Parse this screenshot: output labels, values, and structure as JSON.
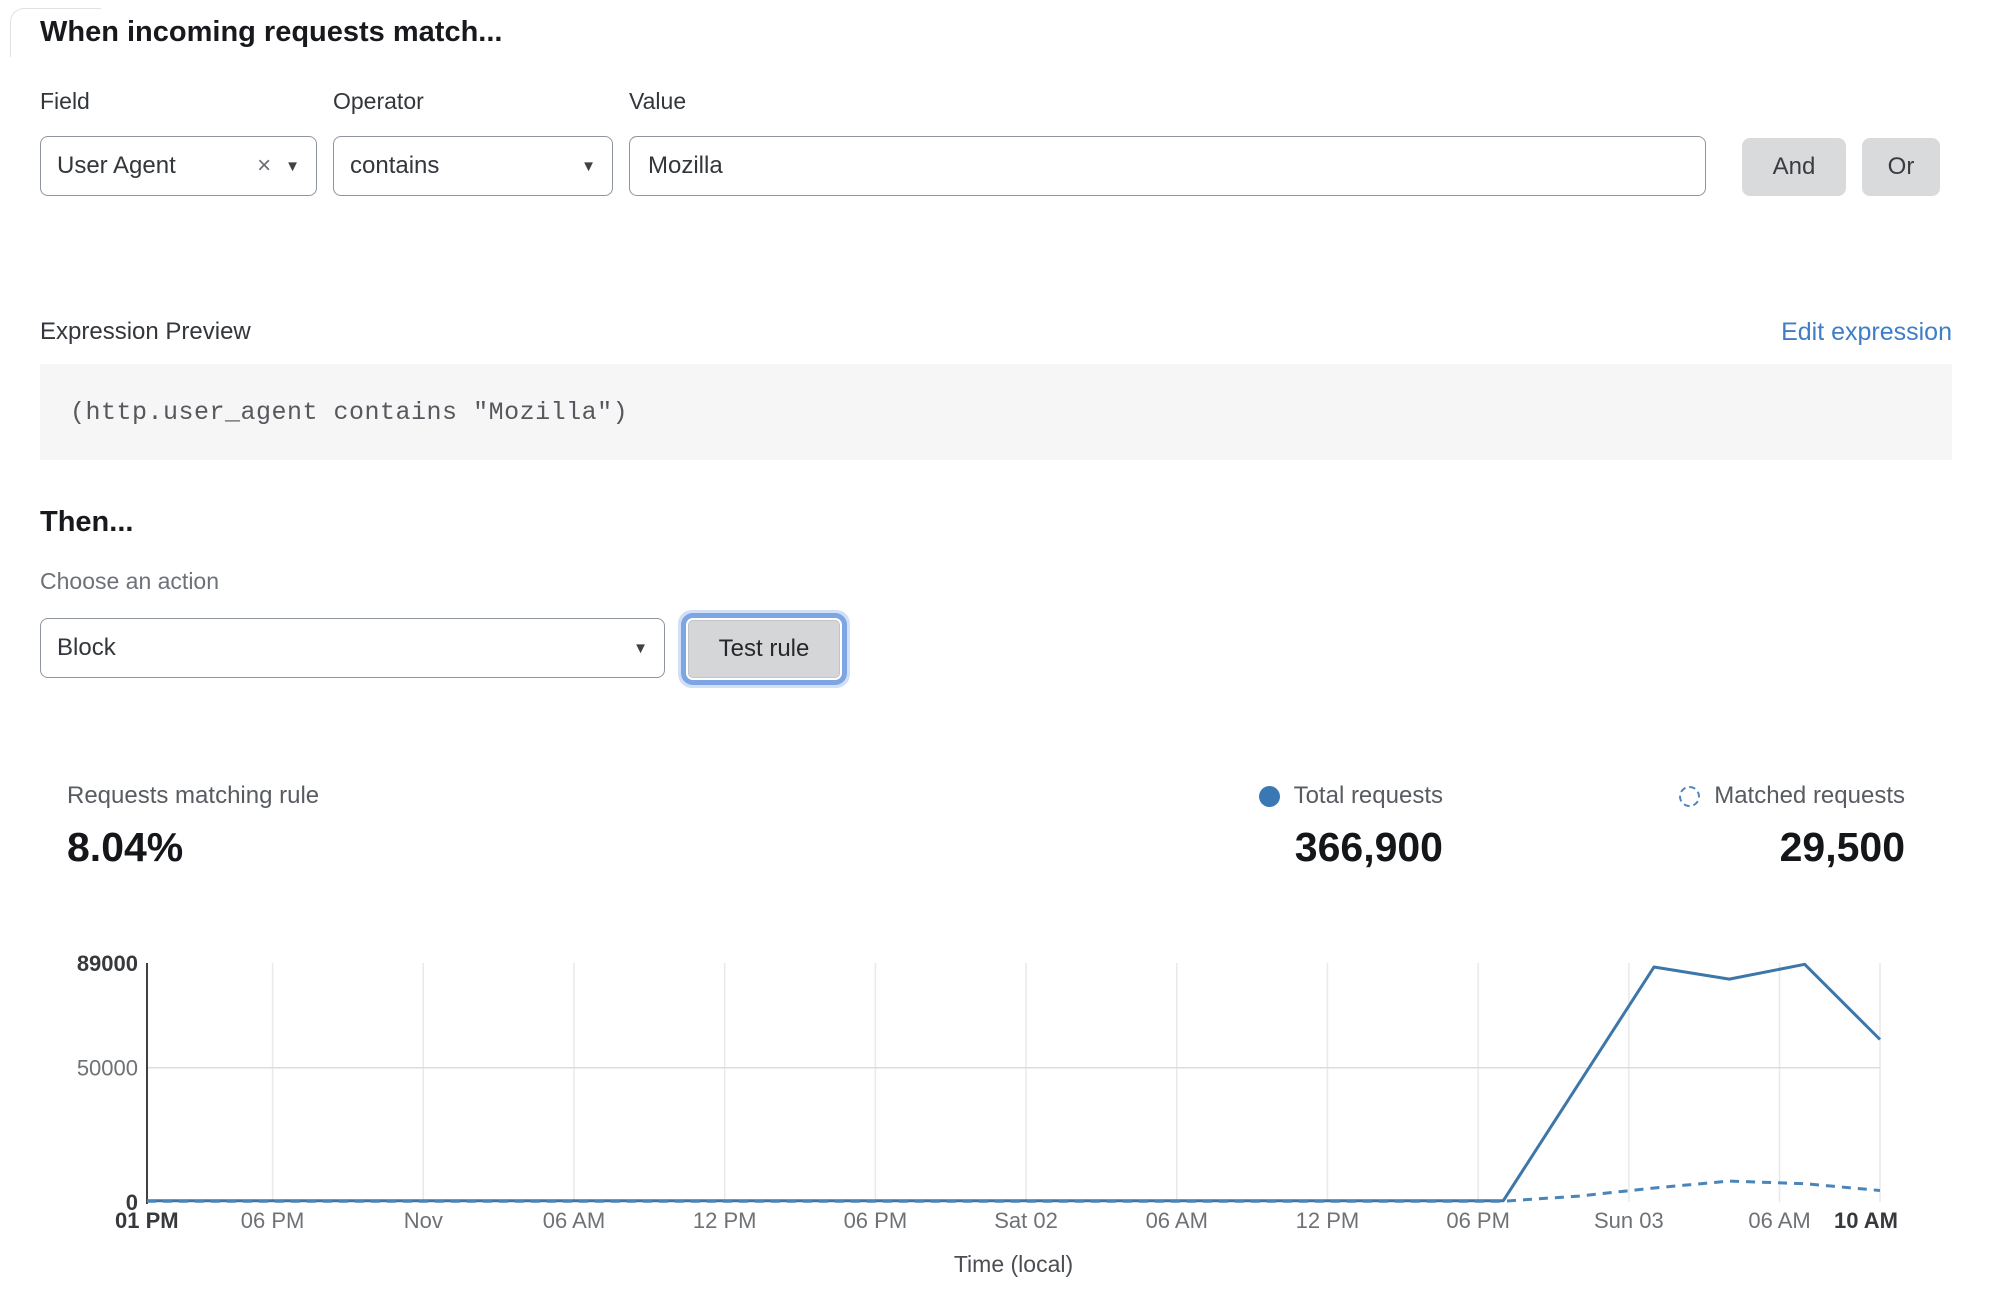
{
  "match_section": {
    "title": "When incoming requests match...",
    "field_label": "Field",
    "operator_label": "Operator",
    "value_label": "Value",
    "field_value": "User Agent",
    "operator_value": "contains",
    "value_value": "Mozilla",
    "and_label": "And",
    "or_label": "Or",
    "remove_icon": "×",
    "dropdown_icon": "▼"
  },
  "expression": {
    "label": "Expression Preview",
    "edit_link": "Edit expression",
    "code": "(http.user_agent contains \"Mozilla\")"
  },
  "action_section": {
    "title": "Then...",
    "choose_label": "Choose an action",
    "action_value": "Block",
    "test_button": "Test rule"
  },
  "stats": {
    "matching_label": "Requests matching rule",
    "matching_value": "8.04%",
    "total_label": "Total requests",
    "total_value": "366,900",
    "matched_label": "Matched requests",
    "matched_value": "29,500"
  },
  "colors": {
    "line_blue": "#3d76a8",
    "dashed_blue": "#4b84b8",
    "legend_dot": "#3a78b5",
    "link_blue": "#3f7ec6",
    "grid_gray": "#e8e9eb"
  },
  "chart_data": {
    "type": "line",
    "xlabel": "Time (local)",
    "ylim": [
      0,
      89000
    ],
    "x_range_hours": [
      0,
      69
    ],
    "grid": true,
    "legend_position": "top-right",
    "y_ticks": [
      {
        "value": 0,
        "label": "0",
        "bold": true,
        "gridline": false
      },
      {
        "value": 50000,
        "label": "50000",
        "bold": false,
        "gridline": true
      },
      {
        "value": 89000,
        "label": "89000",
        "bold": true,
        "gridline": false
      }
    ],
    "x_ticks": [
      {
        "hour": 0,
        "label": "01 PM",
        "bold": true
      },
      {
        "hour": 5,
        "label": "06 PM",
        "bold": false
      },
      {
        "hour": 11,
        "label": "Nov",
        "bold": false
      },
      {
        "hour": 17,
        "label": "06 AM",
        "bold": false
      },
      {
        "hour": 23,
        "label": "12 PM",
        "bold": false
      },
      {
        "hour": 29,
        "label": "06 PM",
        "bold": false
      },
      {
        "hour": 35,
        "label": "Sat 02",
        "bold": false
      },
      {
        "hour": 41,
        "label": "06 AM",
        "bold": false
      },
      {
        "hour": 47,
        "label": "12 PM",
        "bold": false
      },
      {
        "hour": 53,
        "label": "06 PM",
        "bold": false
      },
      {
        "hour": 59,
        "label": "Sun 03",
        "bold": false
      },
      {
        "hour": 65,
        "label": "06 AM",
        "bold": false
      },
      {
        "hour": 69,
        "label": "10 AM",
        "bold": true
      }
    ],
    "series": [
      {
        "name": "Total requests",
        "style": "solid",
        "points": [
          [
            0,
            500
          ],
          [
            6,
            500
          ],
          [
            12,
            500
          ],
          [
            18,
            500
          ],
          [
            24,
            500
          ],
          [
            30,
            500
          ],
          [
            36,
            500
          ],
          [
            42,
            500
          ],
          [
            48,
            500
          ],
          [
            54,
            500
          ],
          [
            60,
            87500
          ],
          [
            63,
            83000
          ],
          [
            66,
            88500
          ],
          [
            69,
            60500
          ]
        ]
      },
      {
        "name": "Matched requests",
        "style": "dashed",
        "points": [
          [
            0,
            300
          ],
          [
            6,
            300
          ],
          [
            12,
            300
          ],
          [
            18,
            300
          ],
          [
            24,
            300
          ],
          [
            30,
            300
          ],
          [
            36,
            300
          ],
          [
            42,
            300
          ],
          [
            48,
            300
          ],
          [
            54,
            300
          ],
          [
            57,
            2200
          ],
          [
            60,
            5200
          ],
          [
            63,
            7800
          ],
          [
            66,
            6800
          ],
          [
            69,
            4300
          ]
        ]
      }
    ]
  }
}
